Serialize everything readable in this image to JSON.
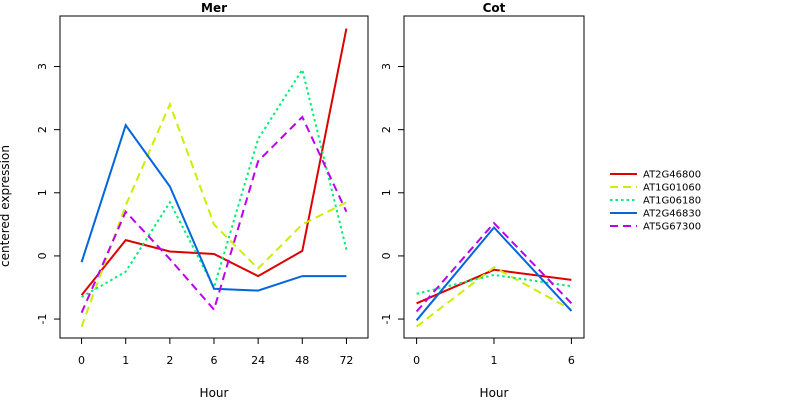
{
  "chart_data": {
    "type": "line",
    "ylabel": "centered expression",
    "colors": {
      "AT2G46800": "#dd0000",
      "AT1G01060": "#ccee00",
      "AT1G06180": "#00ee77",
      "AT2G46830": "#0066dd",
      "AT5G67300": "#bb00ee"
    },
    "dash_styles": {
      "AT2G46800": "solid",
      "AT1G01060": "dashed",
      "AT1G06180": "dotted",
      "AT2G46830": "solid",
      "AT5G67300": "dashed"
    },
    "legend": {
      "position": "right",
      "entries": [
        "AT2G46800",
        "AT1G01060",
        "AT1G06180",
        "AT2G46830",
        "AT5G67300"
      ]
    },
    "ylim": [
      -1.3,
      3.8
    ],
    "yticks": [
      -1,
      0,
      1,
      2,
      3
    ],
    "grid": false,
    "panels": [
      {
        "title": "Mer",
        "xlabel": "Hour",
        "categories": [
          "0",
          "1",
          "2",
          "6",
          "24",
          "48",
          "72"
        ],
        "series": [
          {
            "name": "AT2G46800",
            "values": [
              -0.62,
              0.25,
              0.07,
              0.03,
              -0.32,
              0.08,
              3.6
            ]
          },
          {
            "name": "AT1G01060",
            "values": [
              -1.12,
              0.8,
              2.4,
              0.5,
              -0.2,
              0.5,
              0.85
            ]
          },
          {
            "name": "AT1G06180",
            "values": [
              -0.65,
              -0.25,
              0.85,
              -0.5,
              1.85,
              2.95,
              0.1
            ]
          },
          {
            "name": "AT2G46830",
            "values": [
              -0.1,
              2.07,
              1.1,
              -0.52,
              -0.55,
              -0.32,
              -0.32
            ]
          },
          {
            "name": "AT5G67300",
            "values": [
              -0.9,
              0.7,
              -0.05,
              -0.85,
              1.5,
              2.2,
              0.7
            ]
          }
        ]
      },
      {
        "title": "Cot",
        "xlabel": "Hour",
        "categories": [
          "0",
          "1",
          "6"
        ],
        "series": [
          {
            "name": "AT2G46800",
            "values": [
              -0.75,
              -0.22,
              -0.38
            ]
          },
          {
            "name": "AT1G01060",
            "values": [
              -1.12,
              -0.18,
              -0.85
            ]
          },
          {
            "name": "AT1G06180",
            "values": [
              -0.6,
              -0.3,
              -0.48
            ]
          },
          {
            "name": "AT2G46830",
            "values": [
              -1.02,
              0.45,
              -0.87
            ]
          },
          {
            "name": "AT5G67300",
            "values": [
              -0.88,
              0.52,
              -0.75
            ]
          }
        ]
      }
    ]
  }
}
